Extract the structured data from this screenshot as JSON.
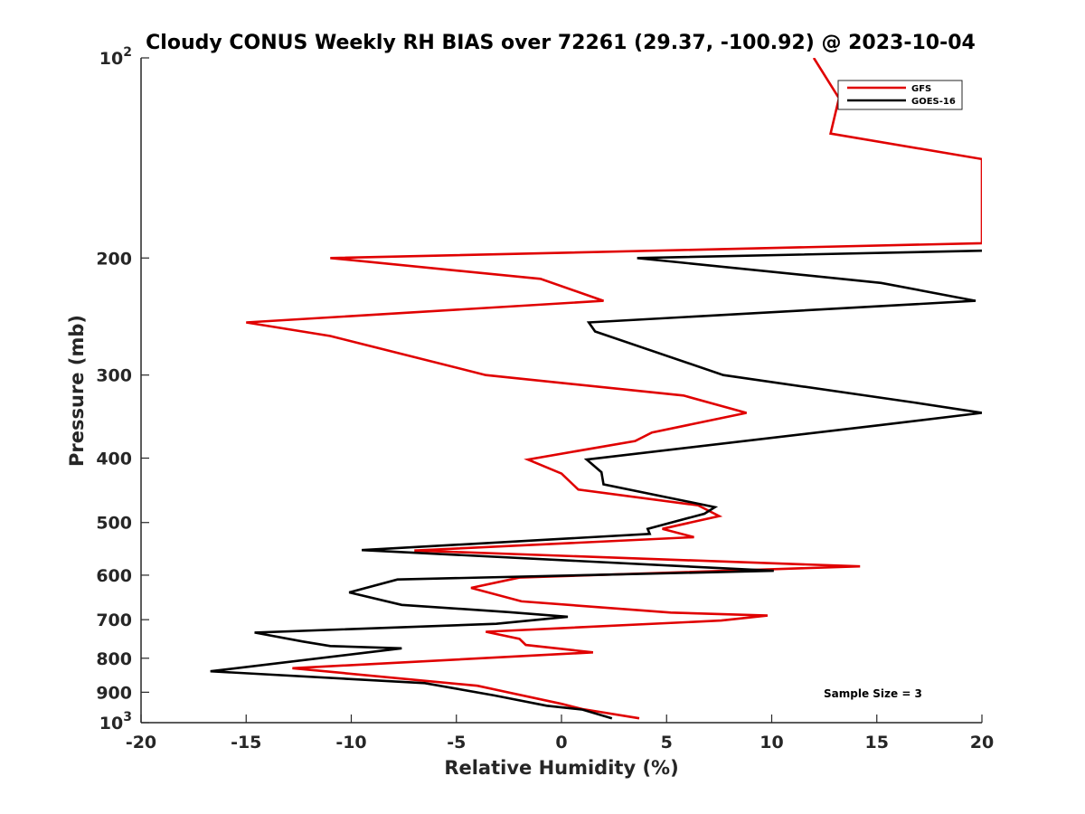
{
  "chart_data": {
    "type": "line",
    "title": "Cloudy CONUS Weekly RH BIAS over 72261 (29.37, -100.92) @ 2023-10-04",
    "xlabel": "Relative Humidity (%)",
    "ylabel": "Pressure (mb)",
    "xlim": [
      -20,
      20
    ],
    "ylim": [
      100,
      1000
    ],
    "yscale": "log",
    "y_reversed": true,
    "grid": false,
    "x_ticks": [
      "-20",
      "-15",
      "-10",
      "-5",
      "0",
      "5",
      "10",
      "15",
      "20"
    ],
    "y_ticks": [
      {
        "value": 100,
        "base": "10",
        "exp": "2"
      },
      {
        "value": 200,
        "label": "200"
      },
      {
        "value": 300,
        "label": "300"
      },
      {
        "value": 400,
        "label": "400"
      },
      {
        "value": 500,
        "label": "500"
      },
      {
        "value": 600,
        "label": "600"
      },
      {
        "value": 700,
        "label": "700"
      },
      {
        "value": 800,
        "label": "800"
      },
      {
        "value": 900,
        "label": "900"
      },
      {
        "value": 1000,
        "base": "10",
        "exp": "3"
      }
    ],
    "legend": {
      "position": "top-right"
    },
    "annotation": "Sample Size = 3",
    "series": [
      {
        "name": "GFS",
        "color": "#e00000",
        "points": [
          [
            12.0,
            100
          ],
          [
            13.2,
            115
          ],
          [
            12.8,
            130
          ],
          [
            20.0,
            142
          ],
          [
            20.0,
            190
          ],
          [
            -11.0,
            200
          ],
          [
            -1.0,
            215
          ],
          [
            2.0,
            232
          ],
          [
            -15.0,
            250
          ],
          [
            -11.0,
            262
          ],
          [
            -3.6,
            300
          ],
          [
            5.8,
            322
          ],
          [
            8.8,
            342
          ],
          [
            4.3,
            366
          ],
          [
            3.5,
            377
          ],
          [
            -1.6,
            402
          ],
          [
            0.0,
            422
          ],
          [
            0.8,
            446
          ],
          [
            6.5,
            471
          ],
          [
            7.5,
            489
          ],
          [
            4.8,
            511
          ],
          [
            6.3,
            526
          ],
          [
            -7.0,
            551
          ],
          [
            14.2,
            582
          ],
          [
            -2.0,
            605
          ],
          [
            -4.3,
            627
          ],
          [
            -1.9,
            657
          ],
          [
            5.2,
            683
          ],
          [
            9.8,
            690
          ],
          [
            7.6,
            702
          ],
          [
            -3.6,
            730
          ],
          [
            -2.0,
            748
          ],
          [
            -1.7,
            764
          ],
          [
            1.5,
            784
          ],
          [
            -12.8,
            828
          ],
          [
            -4.0,
            880
          ],
          [
            0.0,
            937
          ],
          [
            1.0,
            954
          ],
          [
            3.7,
            985
          ]
        ]
      },
      {
        "name": "GOES-16",
        "color": "#000000",
        "points": [
          [
            20.0,
            195
          ],
          [
            3.6,
            200
          ],
          [
            15.2,
            218
          ],
          [
            19.7,
            232
          ],
          [
            1.3,
            250
          ],
          [
            1.6,
            258
          ],
          [
            7.7,
            300
          ],
          [
            16.8,
            330
          ],
          [
            20.0,
            342
          ],
          [
            15.1,
            357
          ],
          [
            1.2,
            402
          ],
          [
            1.9,
            420
          ],
          [
            2.0,
            438
          ],
          [
            7.3,
            474
          ],
          [
            6.8,
            485
          ],
          [
            4.1,
            511
          ],
          [
            4.2,
            520
          ],
          [
            -9.5,
            550
          ],
          [
            10.1,
            591
          ],
          [
            -7.8,
            609
          ],
          [
            -10.1,
            637
          ],
          [
            -7.6,
            665
          ],
          [
            -2.5,
            682
          ],
          [
            0.3,
            693
          ],
          [
            -3.1,
            710
          ],
          [
            -14.6,
            732
          ],
          [
            -12.3,
            755
          ],
          [
            -11.0,
            767
          ],
          [
            -7.6,
            773
          ],
          [
            -16.7,
            837
          ],
          [
            -6.5,
            872
          ],
          [
            -3.2,
            910
          ],
          [
            -0.7,
            943
          ],
          [
            1.0,
            956
          ],
          [
            2.4,
            985
          ]
        ]
      }
    ]
  }
}
